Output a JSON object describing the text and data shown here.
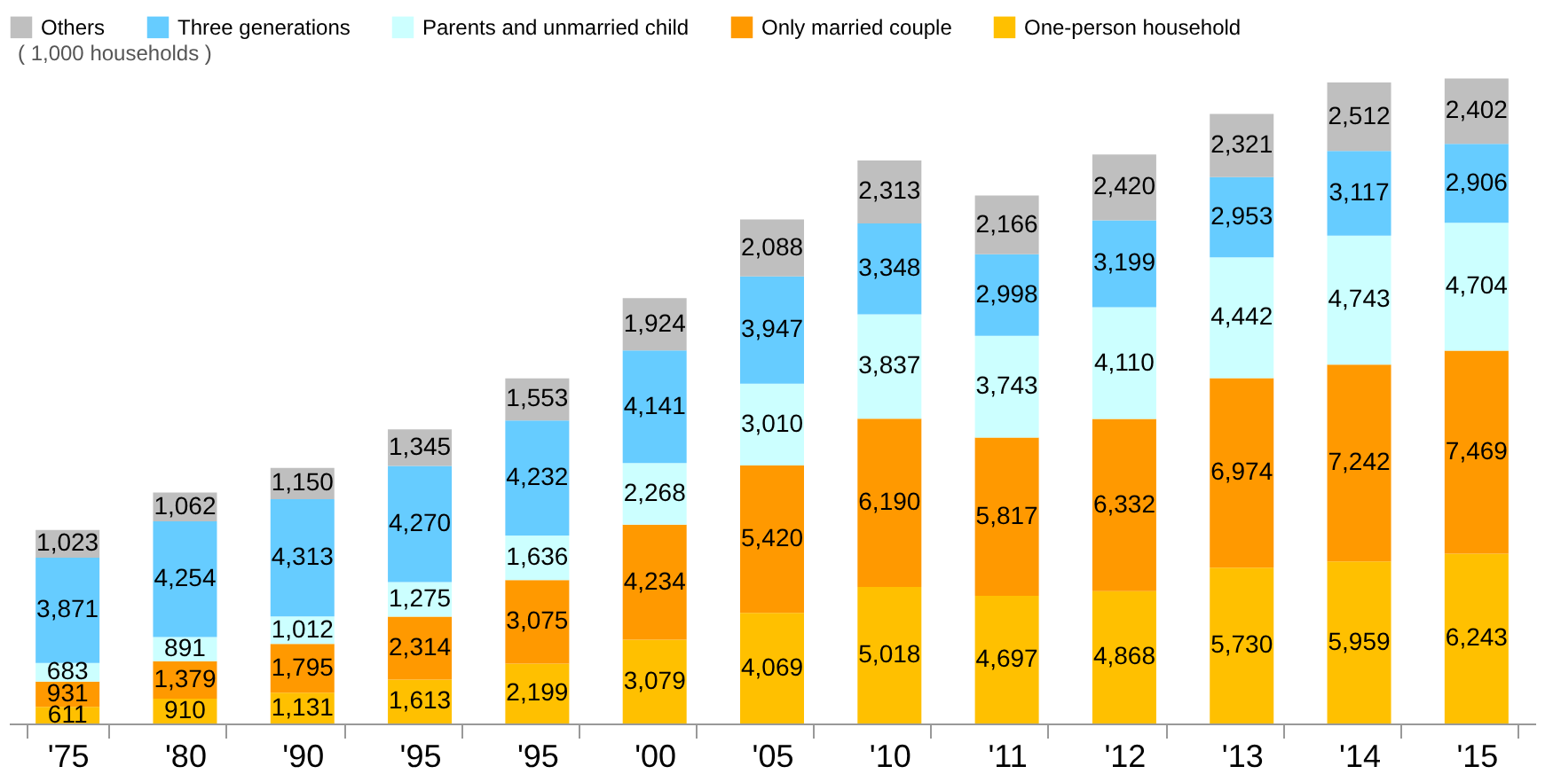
{
  "chart_data": {
    "type": "bar",
    "stacked": true,
    "legend": "top",
    "grid": false,
    "subtitle": "( 1,000 households )",
    "categories": [
      "'75",
      "'80",
      "'90",
      "'95",
      "'95",
      "'00",
      "'05",
      "'10",
      "'11",
      "'12",
      "'13",
      "'14",
      "'15"
    ],
    "series": [
      {
        "name": "One-person household",
        "color": "#ffc000",
        "values": [
          611,
          910,
          1131,
          1613,
          2199,
          3079,
          4069,
          5018,
          4697,
          4868,
          5730,
          5959,
          6243
        ],
        "value_labels": [
          "611",
          "910",
          "1,131",
          "1,613",
          "2,199",
          "3,079",
          "4,069",
          "5,018",
          "4,697",
          "4,868",
          "5,730",
          "5,959",
          "6,243"
        ]
      },
      {
        "name": "Only married couple",
        "color": "#ff9900",
        "values": [
          931,
          1379,
          1795,
          2314,
          3075,
          4234,
          5420,
          6190,
          5817,
          6332,
          6974,
          7242,
          7469
        ],
        "value_labels": [
          "931",
          "1,379",
          "1,795",
          "2,314",
          "3,075",
          "4,234",
          "5,420",
          "6,190",
          "5,817",
          "6,332",
          "6,974",
          "7,242",
          "7,469"
        ]
      },
      {
        "name": "Parents and unmarried child",
        "color": "#ccffff",
        "values": [
          683,
          891,
          1012,
          1275,
          1636,
          2268,
          3010,
          3837,
          3743,
          4110,
          4442,
          4743,
          4704
        ],
        "value_labels": [
          "683",
          "891",
          "1,012",
          "1,275",
          "1,636",
          "2,268",
          "3,010",
          "3,837",
          "3,743",
          "4,110",
          "4,442",
          "4,743",
          "4,704"
        ]
      },
      {
        "name": "Three generations",
        "color": "#66ccff",
        "values": [
          3871,
          4254,
          4313,
          4270,
          4232,
          4141,
          3947,
          3348,
          2998,
          3199,
          2953,
          3117,
          2906
        ],
        "value_labels": [
          "3,871",
          "4,254",
          "4,313",
          "4,270",
          "4,232",
          "4,141",
          "3,947",
          "3,348",
          "2,998",
          "3,199",
          "2,953",
          "3,117",
          "2,906"
        ]
      },
      {
        "name": "Others",
        "color": "#bfbfbf",
        "values": [
          1023,
          1062,
          1150,
          1345,
          1553,
          1924,
          2088,
          2313,
          2166,
          2420,
          2321,
          2512,
          2402
        ],
        "value_labels": [
          "1,023",
          "1,062",
          "1,150",
          "1,345",
          "1,553",
          "1,924",
          "2,088",
          "2,313",
          "2,166",
          "2,420",
          "2,321",
          "2,512",
          "2,402"
        ]
      }
    ]
  }
}
